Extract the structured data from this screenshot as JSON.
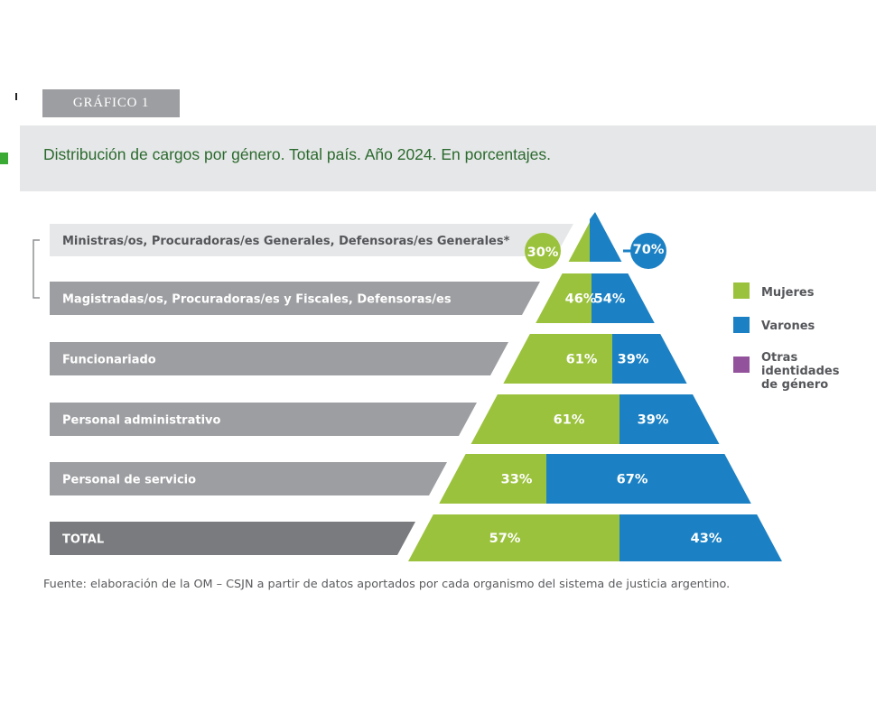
{
  "badge": "GRÁFICO 1",
  "title": "Distribución de cargos por género. Total país. Año 2024. En porcentajes.",
  "source": "Fuente: elaboración de la OM – CSJN a partir de datos aportados por cada organismo del sistema de justicia argentino.",
  "colors": {
    "mujeres": "#9bc23c",
    "varones": "#1b81c4",
    "otras": "#93529c",
    "label_bar": "#9d9ea1",
    "total_bar": "#7a7b7e",
    "top_bar": "#e6e7e8"
  },
  "chart_data": {
    "type": "pyramid",
    "title": "Distribución de cargos por género. Total país. Año 2024. En porcentajes.",
    "series": [
      {
        "name": "Mujeres",
        "color": "#9bc23c"
      },
      {
        "name": "Varones",
        "color": "#1b81c4"
      },
      {
        "name": "Otras identidades de género",
        "color": "#93529c"
      }
    ],
    "rows": [
      {
        "category": "Ministras/os, Procuradoras/es Generales, Defensoras/es Generales*",
        "mujeres": 30,
        "varones": 70,
        "mujeres_label": "30%",
        "varones_label": "70%"
      },
      {
        "category": "Magistradas/os, Procuradoras/es y Fiscales, Defensoras/es",
        "mujeres": 46,
        "varones": 54,
        "mujeres_label": "46%",
        "varones_label": "54%"
      },
      {
        "category": "Funcionariado",
        "mujeres": 61,
        "varones": 39,
        "mujeres_label": "61%",
        "varones_label": "39%"
      },
      {
        "category": "Personal administrativo",
        "mujeres": 61,
        "varones": 39,
        "mujeres_label": "61%",
        "varones_label": "39%"
      },
      {
        "category": "Personal de servicio",
        "mujeres": 33,
        "varones": 67,
        "mujeres_label": "33%",
        "varones_label": "67%"
      },
      {
        "category": "TOTAL",
        "mujeres": 57,
        "varones": 43,
        "mujeres_label": "57%",
        "varones_label": "43%"
      }
    ],
    "legend": [
      "Mujeres",
      "Varones",
      "Otras identidades de género"
    ],
    "legend_lines": [
      "Mujeres",
      "Varones",
      "Otras",
      "identidades",
      "de género"
    ],
    "legend_position": "right"
  }
}
